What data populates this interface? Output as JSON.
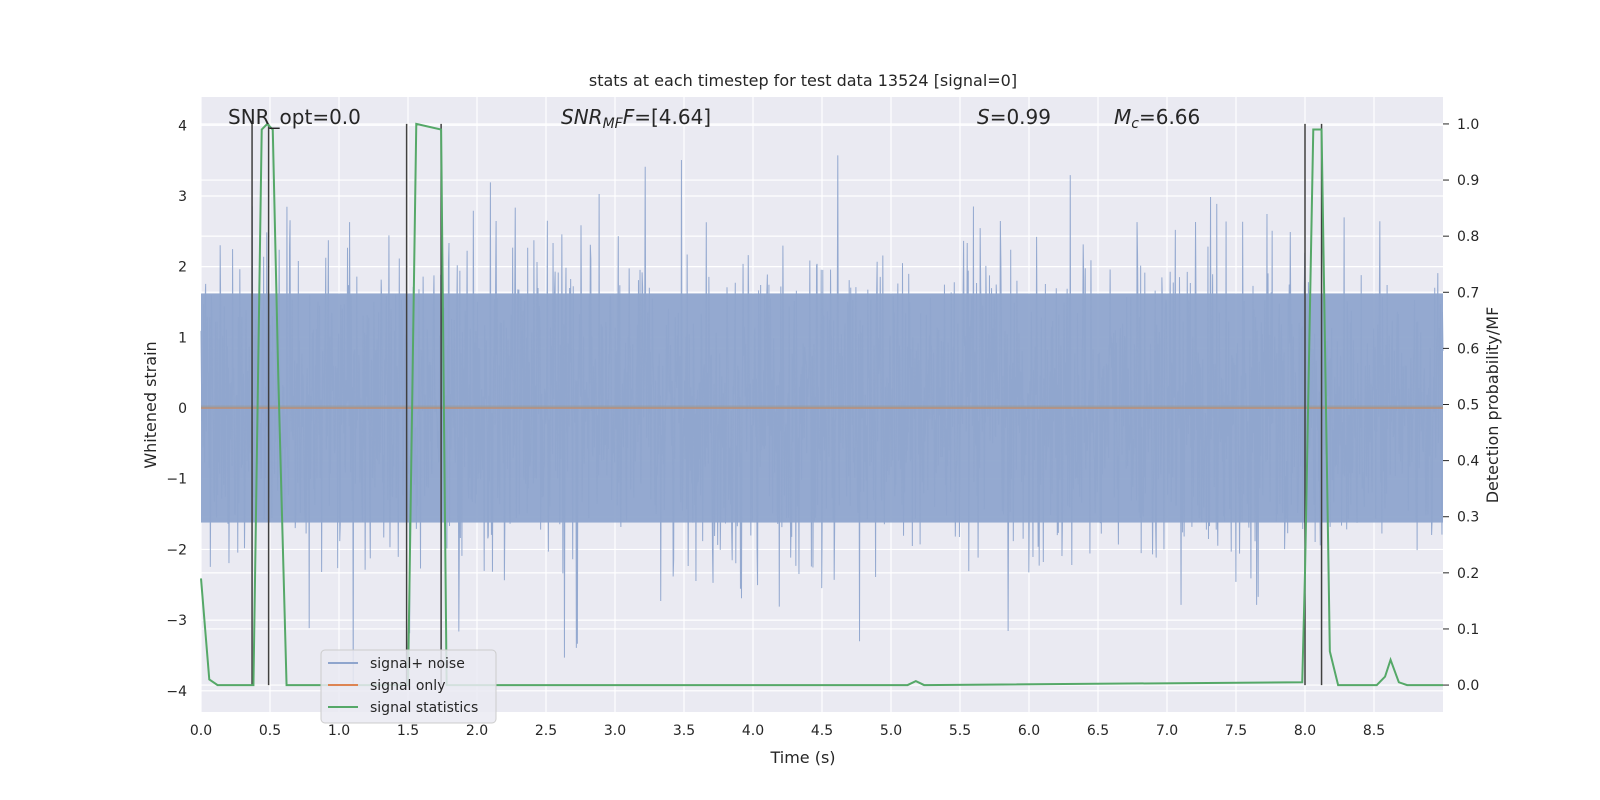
{
  "chart_data": {
    "type": "line",
    "title": "stats at each timestep for test data 13524 [signal=0]",
    "xlabel": "Time (s)",
    "ylabel": "Whitened strain",
    "ylabel_right": "Detection probability/MF",
    "xlim": [
      0.0,
      9.0
    ],
    "ylim": [
      -4.3,
      4.4
    ],
    "ylim_right": [
      -0.048,
      1.048
    ],
    "xticks": [
      "0.0",
      "0.5",
      "1.0",
      "1.5",
      "2.0",
      "2.5",
      "3.0",
      "3.5",
      "4.0",
      "4.5",
      "5.0",
      "5.5",
      "6.0",
      "6.5",
      "7.0",
      "7.5",
      "8.0",
      "8.5"
    ],
    "yticks": [
      "4",
      "3",
      "2",
      "1",
      "0",
      "−1",
      "−2",
      "−3",
      "−4"
    ],
    "yticks_right": [
      "1.0",
      "0.9",
      "0.8",
      "0.7",
      "0.6",
      "0.5",
      "0.4",
      "0.3",
      "0.2",
      "0.1",
      "0.0"
    ],
    "grid": true,
    "legend_position": "lower-left",
    "annotations": {
      "snr_opt": "SNR_opt=0.0",
      "snr_mf_prefix": "SNR",
      "snr_mf_sub": "MF",
      "snr_mf_value": "=[4.64]",
      "s_prefix": "S",
      "s_value": "=0.99",
      "mc_prefix": "M",
      "mc_sub": "c",
      "mc_value": "=6.66"
    },
    "series": [
      {
        "name": "signal+ noise",
        "color": "#8fa5cd",
        "axis": "left",
        "note": "whitened noise trace, roughly Gaussian, dense band within about ±1.6, peaks up to ±3.6",
        "envelope_max": 3.6,
        "envelope_min": -3.9
      },
      {
        "name": "signal only",
        "color": "#dd8452",
        "axis": "left",
        "x": [
          0.0,
          9.0
        ],
        "y": [
          0.0,
          0.0
        ]
      },
      {
        "name": "signal statistics",
        "color": "#55a868",
        "axis": "right",
        "x": [
          0.0,
          0.06,
          0.12,
          0.38,
          0.44,
          0.48,
          0.52,
          0.56,
          0.62,
          0.76,
          1.5,
          1.56,
          1.74,
          1.78,
          1.84,
          5.12,
          5.18,
          5.24,
          7.98,
          8.0,
          8.06,
          8.12,
          8.18,
          8.24,
          8.52,
          8.58,
          8.62,
          8.68,
          8.74,
          9.0
        ],
        "y": [
          0.19,
          0.01,
          0.0,
          0.0,
          0.99,
          1.0,
          0.99,
          0.55,
          0.0,
          0.0,
          0.0,
          1.0,
          0.99,
          0.0,
          0.0,
          0.0,
          0.007,
          0.0,
          0.005,
          0.2,
          0.99,
          0.99,
          0.06,
          0.0,
          0.0,
          0.015,
          0.045,
          0.005,
          0.0,
          0.0
        ]
      }
    ],
    "vertical_markers": [
      {
        "x": 0.37,
        "y_top": 1.0,
        "y_bottom": 0.0
      },
      {
        "x": 0.49,
        "y_top": 1.0,
        "y_bottom": 0.0
      },
      {
        "x": 1.49,
        "y_top": 1.0,
        "y_bottom": 0.0
      },
      {
        "x": 1.74,
        "y_top": 1.0,
        "y_bottom": 0.0
      },
      {
        "x": 8.0,
        "y_top": 1.0,
        "y_bottom": 0.0
      },
      {
        "x": 8.12,
        "y_top": 1.0,
        "y_bottom": 0.0
      }
    ]
  }
}
